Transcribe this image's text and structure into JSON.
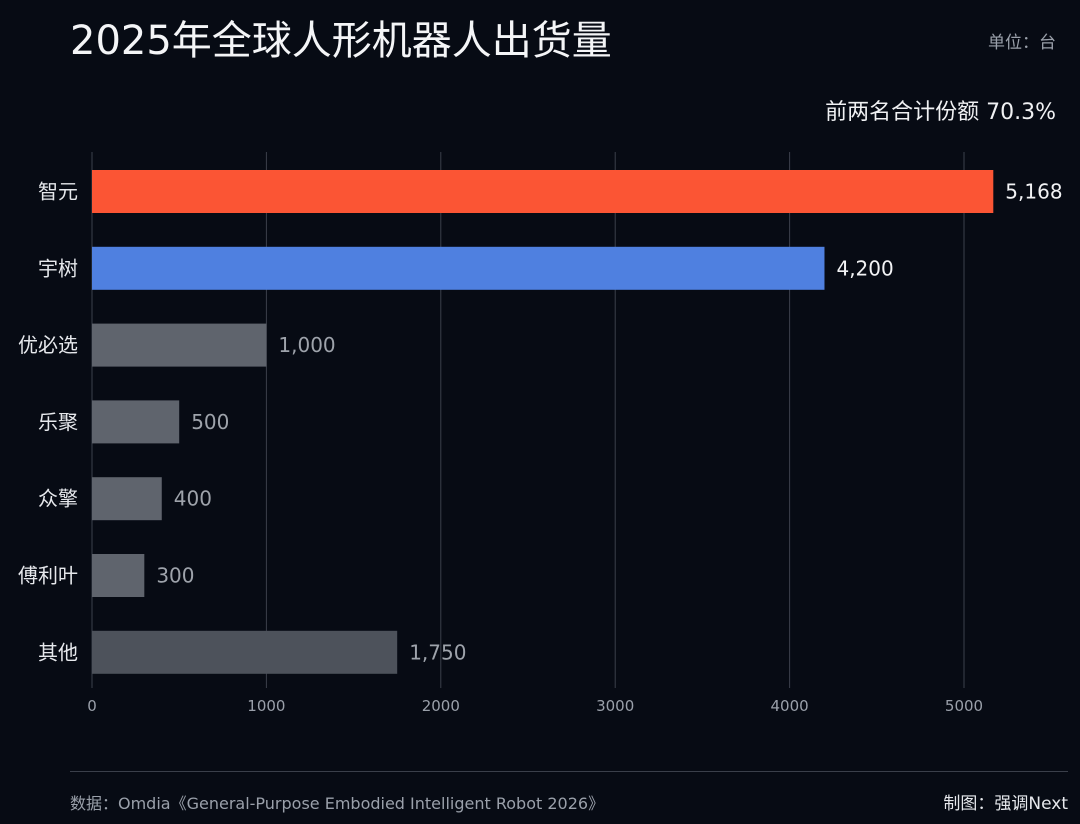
{
  "header": {
    "title": "2025年全球人形机器人出货量",
    "unit": "单位：台",
    "share_note": "前两名合计份额 70.3%"
  },
  "footer": {
    "source": "数据：Omdia《General-Purpose Embodied Intelligent Robot 2026》",
    "credit": "制图：强调Next"
  },
  "chart_data": {
    "type": "bar",
    "orientation": "horizontal",
    "categories": [
      "智元",
      "宇树",
      "优必选",
      "乐聚",
      "众擎",
      "傅利叶",
      "其他"
    ],
    "values": [
      5168,
      4200,
      1000,
      500,
      400,
      300,
      1750
    ],
    "value_labels": [
      "5,168",
      "4,200",
      "1,000",
      "500",
      "400",
      "300",
      "1,750"
    ],
    "bar_colors": [
      "#fb5534",
      "#4f80e0",
      "#5f646d",
      "#5f646d",
      "#5f646d",
      "#5f646d",
      "#4d525b"
    ],
    "label_colors": [
      "#f2f3f5",
      "#f2f3f5",
      "#9ea3ab",
      "#9ea3ab",
      "#9ea3ab",
      "#9ea3ab",
      "#9ea3ab"
    ],
    "x_ticks": [
      "0",
      "1000",
      "2000",
      "3000",
      "4000",
      "5000"
    ],
    "x_tick_values": [
      0,
      1000,
      2000,
      3000,
      4000,
      5000
    ],
    "xlim": [
      0,
      5300
    ],
    "grid": true,
    "legend": "none",
    "colors": {
      "background": "#070b14",
      "grid": "#3b404b",
      "tick_text": "#9aa0aa",
      "category_text": "#e6e8ec"
    }
  }
}
